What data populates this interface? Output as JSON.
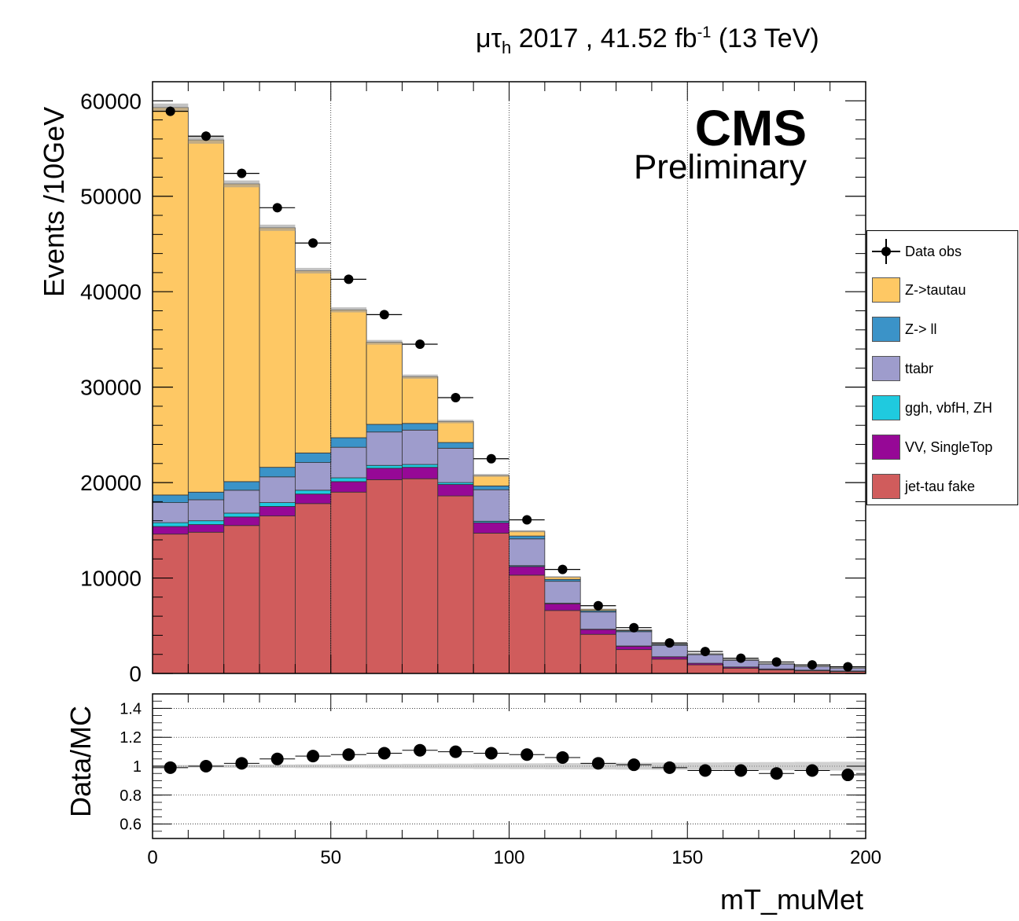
{
  "header": {
    "channel_mu": "μτ",
    "channel_sub": "h",
    "year_lumi": " 2017 , 41.52 fb",
    "lumi_exp": "-1",
    "energy": " (13 TeV)"
  },
  "labels": {
    "cms": "CMS",
    "preliminary": "Preliminary",
    "ylabel_main": "Events /10GeV",
    "ylabel_ratio": "Data/MC",
    "xlabel": "mT_muMet"
  },
  "legend": {
    "items": [
      {
        "label": "Data obs",
        "kind": "marker"
      },
      {
        "label": "Z->tautau",
        "color": "#fec864"
      },
      {
        "label": "Z-> ll",
        "color": "#3b93c8"
      },
      {
        "label": "ttabr",
        "color": "#9e9ccc"
      },
      {
        "label": "ggh, vbfH, ZH",
        "color": "#1fcadf"
      },
      {
        "label": "VV, SingleTop",
        "color": "#960896"
      },
      {
        "label": "jet-tau fake",
        "color": "#d05c5c"
      }
    ]
  },
  "chart_data": [
    {
      "type": "bar",
      "stacked": true,
      "xlim": [
        0,
        200
      ],
      "ylim": [
        0,
        62000
      ],
      "x_ticks": [
        0,
        50,
        100,
        150,
        200
      ],
      "y_ticks": [
        0,
        10000,
        20000,
        30000,
        40000,
        50000,
        60000
      ],
      "bin_edges": [
        0,
        10,
        20,
        30,
        40,
        50,
        60,
        70,
        80,
        90,
        100,
        110,
        120,
        130,
        140,
        150,
        160,
        170,
        180,
        190,
        200
      ],
      "series": [
        {
          "name": "jet-tau fake",
          "color": "#d05c5c",
          "values": [
            14600,
            14800,
            15500,
            16500,
            17800,
            19000,
            20300,
            20400,
            18600,
            14700,
            10300,
            6600,
            4100,
            2500,
            1500,
            900,
            550,
            380,
            270,
            200
          ]
        },
        {
          "name": "VV, SingleTop",
          "color": "#960896",
          "values": [
            800,
            800,
            900,
            1000,
            1000,
            1100,
            1200,
            1200,
            1200,
            1100,
            900,
            700,
            500,
            350,
            230,
            160,
            120,
            90,
            70,
            50
          ]
        },
        {
          "name": "ggh, vbfH, ZH",
          "color": "#1fcadf",
          "values": [
            400,
            400,
            400,
            400,
            400,
            400,
            300,
            300,
            200,
            150,
            100,
            60,
            40,
            30,
            20,
            10,
            10,
            5,
            5,
            5
          ]
        },
        {
          "name": "ttabr",
          "color": "#9e9ccc",
          "values": [
            2100,
            2200,
            2400,
            2700,
            2900,
            3200,
            3500,
            3600,
            3600,
            3300,
            2800,
            2300,
            1800,
            1500,
            1200,
            900,
            700,
            500,
            380,
            280
          ]
        },
        {
          "name": "Z-> ll",
          "color": "#3b93c8",
          "values": [
            800,
            800,
            900,
            1000,
            1000,
            1000,
            800,
            700,
            600,
            400,
            300,
            200,
            150,
            110,
            80,
            60,
            50,
            40,
            30,
            25
          ]
        },
        {
          "name": "Z->tautau",
          "color": "#fec864",
          "values": [
            40600,
            36900,
            31200,
            25100,
            19100,
            13400,
            8600,
            4900,
            2200,
            1100,
            500,
            250,
            140,
            80,
            60,
            40,
            30,
            20,
            15,
            10
          ]
        }
      ],
      "data": {
        "name": "Data obs",
        "x": [
          5,
          15,
          25,
          35,
          45,
          55,
          65,
          75,
          85,
          95,
          105,
          115,
          125,
          135,
          145,
          155,
          165,
          175,
          185,
          195
        ],
        "y": [
          58900,
          56300,
          52400,
          48800,
          45100,
          41300,
          37600,
          34500,
          28900,
          22500,
          16100,
          10900,
          7100,
          4800,
          3200,
          2300,
          1600,
          1200,
          900,
          700
        ]
      }
    },
    {
      "type": "scatter",
      "xlim": [
        0,
        200
      ],
      "ylim": [
        0.5,
        1.5
      ],
      "x_ticks": [
        0,
        50,
        100,
        150,
        200
      ],
      "y_ticks": [
        0.6,
        0.8,
        1,
        1.2,
        1.4
      ],
      "y_tick_labels": [
        "0.6",
        "0.8",
        "1",
        "1.2",
        "1.4"
      ],
      "x": [
        5,
        15,
        25,
        35,
        45,
        55,
        65,
        75,
        85,
        95,
        105,
        115,
        125,
        135,
        145,
        155,
        165,
        175,
        185,
        195
      ],
      "y": [
        0.99,
        1.0,
        1.02,
        1.05,
        1.07,
        1.08,
        1.09,
        1.11,
        1.1,
        1.09,
        1.08,
        1.06,
        1.02,
        1.01,
        0.99,
        0.97,
        0.97,
        0.95,
        0.97,
        0.94
      ]
    }
  ]
}
